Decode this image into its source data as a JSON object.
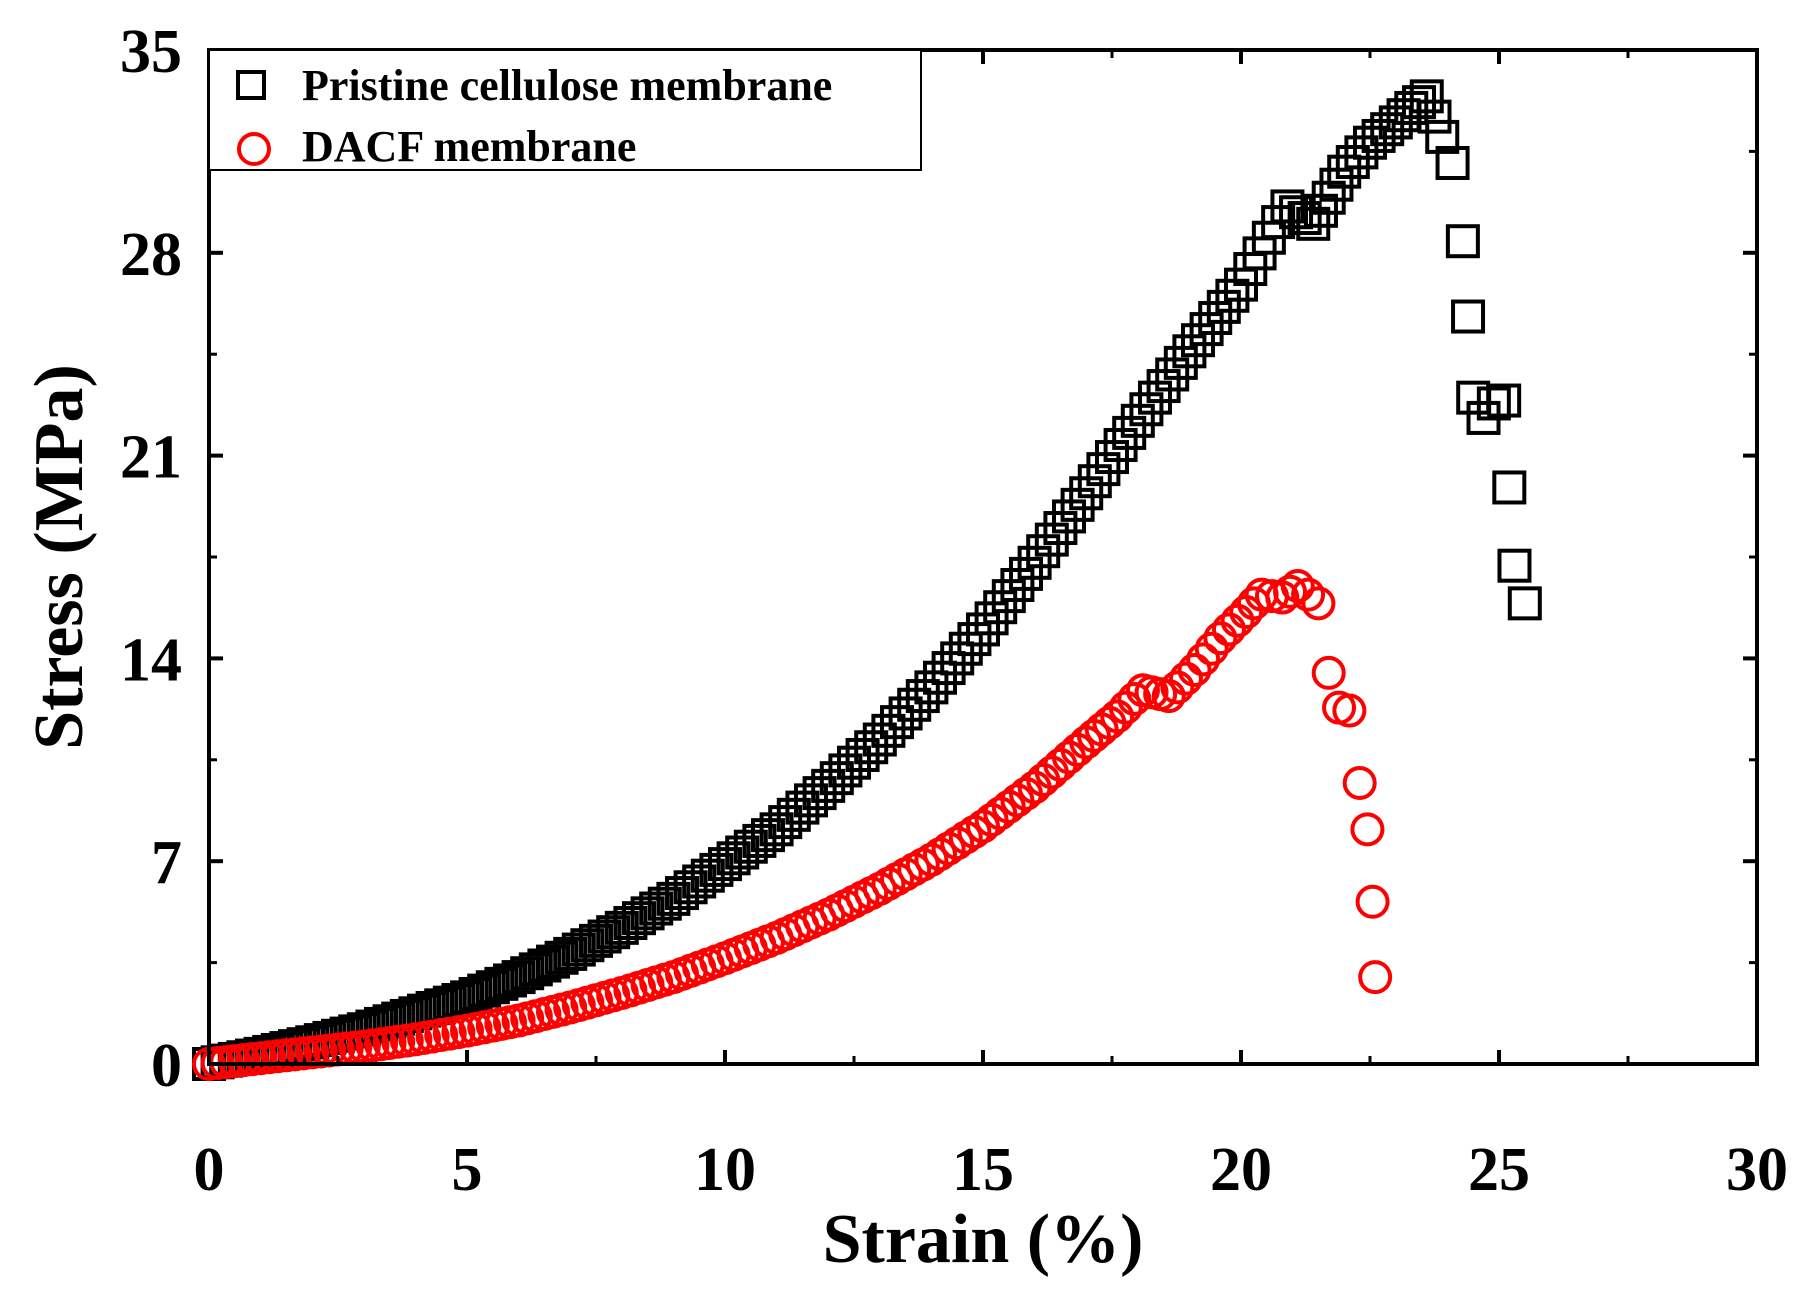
{
  "chart_data": {
    "type": "scatter",
    "title": "",
    "xlabel": "Strain (%)",
    "ylabel": "Stress (MPa)",
    "xlim": [
      0,
      30
    ],
    "ylim": [
      0,
      35
    ],
    "x_ticks": [
      "0",
      "5",
      "10",
      "15",
      "20",
      "25",
      "30"
    ],
    "y_ticks": [
      "0",
      "7",
      "14",
      "21",
      "28",
      "35"
    ],
    "x_tick_values": [
      0,
      5,
      10,
      15,
      20,
      25,
      30
    ],
    "y_tick_values": [
      0,
      7,
      14,
      21,
      28,
      35
    ],
    "legend_position": "top-left",
    "series": [
      {
        "name": "Pristine cellulose membrane",
        "marker": "square",
        "color": "#000000",
        "points": [
          [
            0,
            0
          ],
          [
            1,
            0.35
          ],
          [
            2,
            0.75
          ],
          [
            3,
            1.2
          ],
          [
            4,
            1.75
          ],
          [
            5,
            2.3
          ],
          [
            6,
            3.0
          ],
          [
            7,
            3.8
          ],
          [
            8,
            4.7
          ],
          [
            9,
            5.7
          ],
          [
            10,
            6.9
          ],
          [
            11,
            8.1
          ],
          [
            12,
            9.6
          ],
          [
            13,
            11.2
          ],
          [
            14,
            13.0
          ],
          [
            15,
            15.0
          ],
          [
            16,
            17.3
          ],
          [
            17,
            19.7
          ],
          [
            18,
            22.2
          ],
          [
            19,
            24.6
          ],
          [
            20,
            26.9
          ],
          [
            20.9,
            29.6
          ],
          [
            21.4,
            29.0
          ],
          [
            22,
            30.8
          ],
          [
            22.5,
            31.8
          ],
          [
            23,
            32.5
          ],
          [
            23.3,
            33.0
          ],
          [
            23.6,
            33.4
          ],
          [
            23.9,
            32.0
          ],
          [
            24.1,
            31.1
          ],
          [
            24.3,
            28.4
          ],
          [
            24.4,
            25.8
          ],
          [
            24.5,
            23.0
          ],
          [
            24.7,
            22.3
          ],
          [
            24.9,
            22.8
          ],
          [
            25.1,
            22.9
          ],
          [
            25.2,
            19.9
          ],
          [
            25.3,
            17.2
          ],
          [
            25.5,
            15.9
          ]
        ]
      },
      {
        "name": "DACF membrane",
        "marker": "circle",
        "color": "#ff0000",
        "points": [
          [
            0,
            0
          ],
          [
            1,
            0.2
          ],
          [
            2,
            0.4
          ],
          [
            3,
            0.6
          ],
          [
            4,
            0.85
          ],
          [
            5,
            1.15
          ],
          [
            6,
            1.5
          ],
          [
            7,
            1.95
          ],
          [
            8,
            2.45
          ],
          [
            9,
            3.0
          ],
          [
            10,
            3.65
          ],
          [
            11,
            4.35
          ],
          [
            12,
            5.15
          ],
          [
            13,
            6.05
          ],
          [
            14,
            7.05
          ],
          [
            15,
            8.2
          ],
          [
            16,
            9.55
          ],
          [
            17,
            11.1
          ],
          [
            17.6,
            12.0
          ],
          [
            18.1,
            12.9
          ],
          [
            18.6,
            12.7
          ],
          [
            19.1,
            13.6
          ],
          [
            19.6,
            14.7
          ],
          [
            20.1,
            15.6
          ],
          [
            20.4,
            16.2
          ],
          [
            20.8,
            16.1
          ],
          [
            21.1,
            16.5
          ],
          [
            21.3,
            16.2
          ],
          [
            21.5,
            15.9
          ],
          [
            21.7,
            13.5
          ],
          [
            21.9,
            12.3
          ],
          [
            22.1,
            12.2
          ],
          [
            22.3,
            9.7
          ],
          [
            22.45,
            8.1
          ],
          [
            22.55,
            5.6
          ],
          [
            22.6,
            3.0
          ]
        ]
      }
    ]
  }
}
